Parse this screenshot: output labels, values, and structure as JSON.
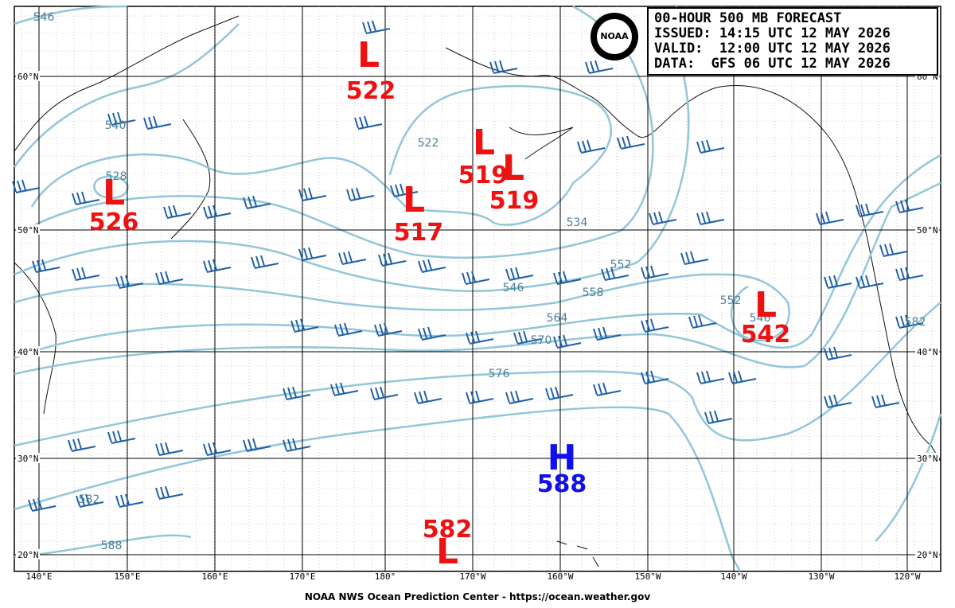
{
  "header": {
    "lines": [
      "00-HOUR 500 MB FORECAST",
      "ISSUED: 14:15 UTC 12 MAY 2026",
      "VALID:  12:00 UTC 12 MAY 2026",
      "DATA:  GFS 06 UTC 12 MAY 2026"
    ],
    "logo": "NOAA"
  },
  "map": {
    "lat_labels": [
      "60°N",
      "50°N",
      "40°N",
      "30°N",
      "20°N"
    ],
    "lon_labels": [
      "140°E",
      "150°E",
      "160°E",
      "170°E",
      "180°",
      "170°W",
      "160°W",
      "150°W",
      "140°W",
      "130°W",
      "120°W"
    ],
    "systems": [
      {
        "symbol": "L",
        "value": 522
      },
      {
        "symbol": "L",
        "value": 519
      },
      {
        "symbol": "L",
        "value": 519
      },
      {
        "symbol": "L",
        "value": 517
      },
      {
        "symbol": "L",
        "value": 526
      },
      {
        "symbol": "L",
        "value": 542
      },
      {
        "symbol": "H",
        "value": 588
      },
      {
        "symbol": "L",
        "value": 582
      }
    ],
    "contour_labels": [
      546,
      540,
      528,
      522,
      534,
      546,
      552,
      558,
      564,
      570,
      576,
      582,
      588,
      546,
      552,
      582
    ]
  },
  "footer": "NOAA NWS Ocean Prediction Center - https://ocean.weather.gov"
}
